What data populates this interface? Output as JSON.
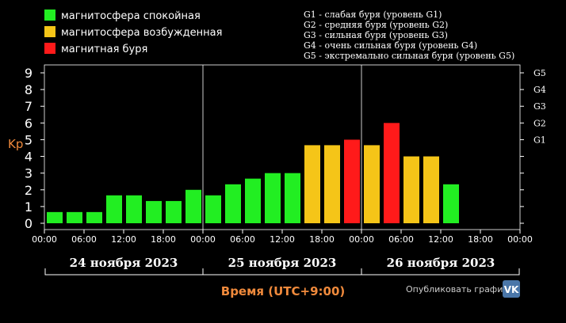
{
  "colors": {
    "quiet": "#22ee22",
    "active": "#f5c518",
    "storm": "#ff1a1a",
    "axis_label": "#f08a3c",
    "vk": "#4a76a8"
  },
  "legend": [
    {
      "label": "магнитосфера спокойная",
      "color": "#22ee22"
    },
    {
      "label": "магнитосфера возбужденная",
      "color": "#f5c518"
    },
    {
      "label": "магнитная буря",
      "color": "#ff1a1a"
    }
  ],
  "storm_levels": [
    "G1 - слабая буря (уровень G1)",
    "G2 - средняя буря (уровень G2)",
    "G3 - сильная буря (уровень G3)",
    "G4 - очень сильная буря (уровень G4)",
    "G5 - экстремально сильная буря (уровень G5)"
  ],
  "days": [
    "24 ноября 2023",
    "25 ноября 2023",
    "26 ноября 2023"
  ],
  "share_label": "Опубликовать график:",
  "vk_icon": "vk-icon",
  "vk_label": "VK",
  "chart_data": {
    "type": "bar",
    "ylabel": "Kp",
    "xlabel": "Время (UTC+9:00)",
    "ylim": [
      0,
      9
    ],
    "y_ticks": [
      0,
      1,
      2,
      3,
      4,
      5,
      6,
      7,
      8,
      9
    ],
    "g_ticks": [
      {
        "label": "G1",
        "value": 5
      },
      {
        "label": "G2",
        "value": 6
      },
      {
        "label": "G3",
        "value": 7
      },
      {
        "label": "G4",
        "value": 8
      },
      {
        "label": "G5",
        "value": 9
      }
    ],
    "x_tick_labels": [
      "00:00",
      "06:00",
      "12:00",
      "18:00",
      "00:00",
      "06:00",
      "12:00",
      "18:00",
      "00:00",
      "06:00",
      "12:00",
      "18:00",
      "00:00"
    ],
    "grid": false,
    "bars": [
      {
        "value": 0.67,
        "level": "quiet"
      },
      {
        "value": 0.67,
        "level": "quiet"
      },
      {
        "value": 0.67,
        "level": "quiet"
      },
      {
        "value": 1.67,
        "level": "quiet"
      },
      {
        "value": 1.67,
        "level": "quiet"
      },
      {
        "value": 1.33,
        "level": "quiet"
      },
      {
        "value": 1.33,
        "level": "quiet"
      },
      {
        "value": 2.0,
        "level": "quiet"
      },
      {
        "value": 1.67,
        "level": "quiet"
      },
      {
        "value": 2.33,
        "level": "quiet"
      },
      {
        "value": 2.67,
        "level": "quiet"
      },
      {
        "value": 3.0,
        "level": "quiet"
      },
      {
        "value": 3.0,
        "level": "quiet"
      },
      {
        "value": 4.67,
        "level": "active"
      },
      {
        "value": 4.67,
        "level": "active"
      },
      {
        "value": 5.0,
        "level": "storm"
      },
      {
        "value": 4.67,
        "level": "active"
      },
      {
        "value": 6.0,
        "level": "storm"
      },
      {
        "value": 4.0,
        "level": "active"
      },
      {
        "value": 4.0,
        "level": "active"
      },
      {
        "value": 2.33,
        "level": "quiet"
      }
    ]
  }
}
